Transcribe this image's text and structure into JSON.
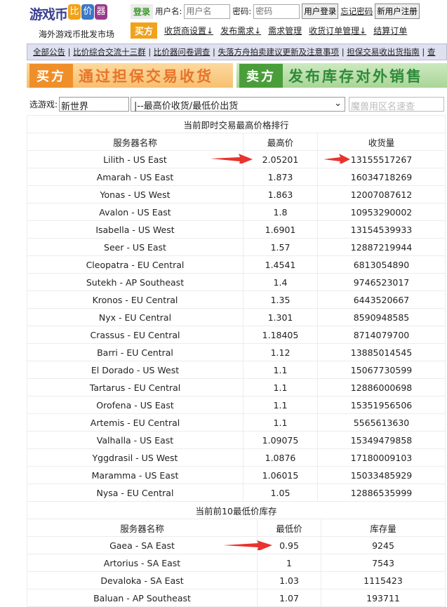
{
  "logo": {
    "text": "游戏币",
    "badges": [
      "比",
      "价",
      "器"
    ],
    "subtitle": "海外游戏币批发市场"
  },
  "login": {
    "tag": "登录",
    "user_label": "用户名:",
    "user_placeholder": "用户名",
    "pass_label": "密码:",
    "pass_placeholder": "密码",
    "login_button": "用户登录",
    "forgot": "忘记密码",
    "register": "新用户注册"
  },
  "buyer_nav": {
    "tag": "买方",
    "links": [
      "收货商设置↓",
      "发布需求↓",
      "需求管理",
      "收货订单管理↓",
      "结算订单"
    ]
  },
  "notices": [
    "全部公告",
    "比价综合交流十三群",
    "比价器问卷调查",
    "失落方舟拍卖建议更新及注意事项",
    "担保交易收出货指南",
    "查"
  ],
  "banners": [
    {
      "tag": "买方",
      "text": "通过担保交易收货"
    },
    {
      "tag": "卖方",
      "text": "发布库存对外销售"
    }
  ],
  "selector": {
    "label": "选游戏:",
    "game": "新世界",
    "mode": "|--最高价收货/最低价出货",
    "search_placeholder": "魔兽用区名速查"
  },
  "high_table": {
    "title": "当前即时交易最高价格排行",
    "headers": [
      "服务器名称",
      "最高价",
      "收货量"
    ],
    "rows": [
      [
        "Lilith - US East",
        "2.05201",
        "13155517267"
      ],
      [
        "Amarah - US East",
        "1.873",
        "16034718269"
      ],
      [
        "Yonas - US West",
        "1.863",
        "12007087612"
      ],
      [
        "Avalon - US East",
        "1.8",
        "10953290002"
      ],
      [
        "Isabella - US West",
        "1.6901",
        "13154539933"
      ],
      [
        "Seer - US East",
        "1.57",
        "12887219944"
      ],
      [
        "Cleopatra - EU Central",
        "1.4541",
        "6813054890"
      ],
      [
        "Sutekh - AP Southeast",
        "1.4",
        "9746523017"
      ],
      [
        "Kronos - EU Central",
        "1.35",
        "6443520667"
      ],
      [
        "Nyx - EU Central",
        "1.301",
        "8590948585"
      ],
      [
        "Crassus - EU Central",
        "1.18405",
        "8714079700"
      ],
      [
        "Barri - EU Central",
        "1.12",
        "13885014545"
      ],
      [
        "El Dorado - US West",
        "1.1",
        "15067730599"
      ],
      [
        "Tartarus - EU Central",
        "1.1",
        "12886000698"
      ],
      [
        "Orofena - US East",
        "1.1",
        "15351956506"
      ],
      [
        "Artemis - EU Central",
        "1.1",
        "5565613630"
      ],
      [
        "Valhalla - US East",
        "1.09075",
        "15349479858"
      ],
      [
        "Yggdrasil - US West",
        "1.0876",
        "17180009103"
      ],
      [
        "Maramma - US East",
        "1.06015",
        "15033485929"
      ],
      [
        "Nysa - EU Central",
        "1.05",
        "12886535999"
      ]
    ]
  },
  "low_table": {
    "title": "当前前10最低价库存",
    "headers": [
      "服务器名称",
      "最低价",
      "库存量"
    ],
    "rows": [
      [
        "Gaea - SA East",
        "0.95",
        "9245"
      ],
      [
        "Artorius - SA East",
        "1",
        "7543"
      ],
      [
        "Devaloka - SA East",
        "1.03",
        "1115423"
      ],
      [
        "Baluan - AP Southeast",
        "1.07",
        "193711"
      ]
    ]
  },
  "colors": {
    "arrow": "#e8332e",
    "notice_bg": "#dfe0f0"
  }
}
